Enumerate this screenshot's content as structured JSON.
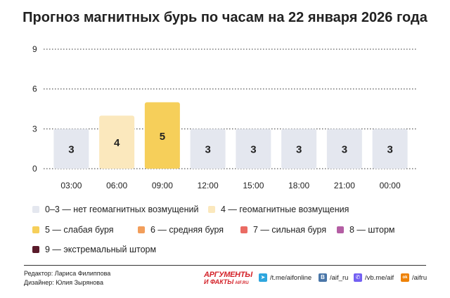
{
  "title": "Прогноз магнитных бурь по часам на 22 января 2026 года",
  "chart_data": {
    "type": "bar",
    "categories": [
      "03:00",
      "06:00",
      "09:00",
      "12:00",
      "15:00",
      "18:00",
      "21:00",
      "00:00"
    ],
    "values": [
      3,
      4,
      5,
      3,
      3,
      3,
      3,
      3
    ],
    "ylim": [
      0,
      9
    ],
    "yticks": [
      "0",
      "3",
      "6",
      "9"
    ],
    "grid": true,
    "bar_labels": [
      "3",
      "4",
      "5",
      "3",
      "3",
      "3",
      "3",
      "3"
    ]
  },
  "level_colors": {
    "0-3": "#e4e7ef",
    "4": "#fbe8bd",
    "5": "#f6cf5a",
    "6": "#f29e5b",
    "7": "#ea6b63",
    "8": "#b45ea4",
    "9": "#5a1a2a"
  },
  "legend": [
    {
      "label": "0–3 — нет геомагнитных возмущений",
      "color": "#e4e7ef"
    },
    {
      "label": "4 — геомагнитные возмущения",
      "color": "#fbe8bd"
    },
    {
      "label": "5 — слабая буря",
      "color": "#f6cf5a"
    },
    {
      "label": "6 — средняя буря",
      "color": "#f29e5b"
    },
    {
      "label": "7 — сильная буря",
      "color": "#ea6b63"
    },
    {
      "label": "8 — шторм",
      "color": "#b45ea4"
    },
    {
      "label": "9 — экстремальный шторм",
      "color": "#5a1a2a"
    }
  ],
  "credits": {
    "editor": "Редактор: Лариса Филиппова",
    "designer": "Дизайнер: Юлия Зырянова"
  },
  "brand": {
    "line1": "АРГУМЕНТЫ",
    "line2": "И ФАКТЫ",
    "site": "AIF.RU"
  },
  "social": [
    {
      "icon": "telegram-icon",
      "text": "/t.me/aifonline",
      "color": "#2ea6de"
    },
    {
      "icon": "vk-icon",
      "text": "/aif_ru",
      "color": "#4a76a8"
    },
    {
      "icon": "viber-icon",
      "text": "/vb.me/aif",
      "color": "#7360f2"
    },
    {
      "icon": "ok-icon",
      "text": "/aifru",
      "color": "#ee8208"
    }
  ]
}
